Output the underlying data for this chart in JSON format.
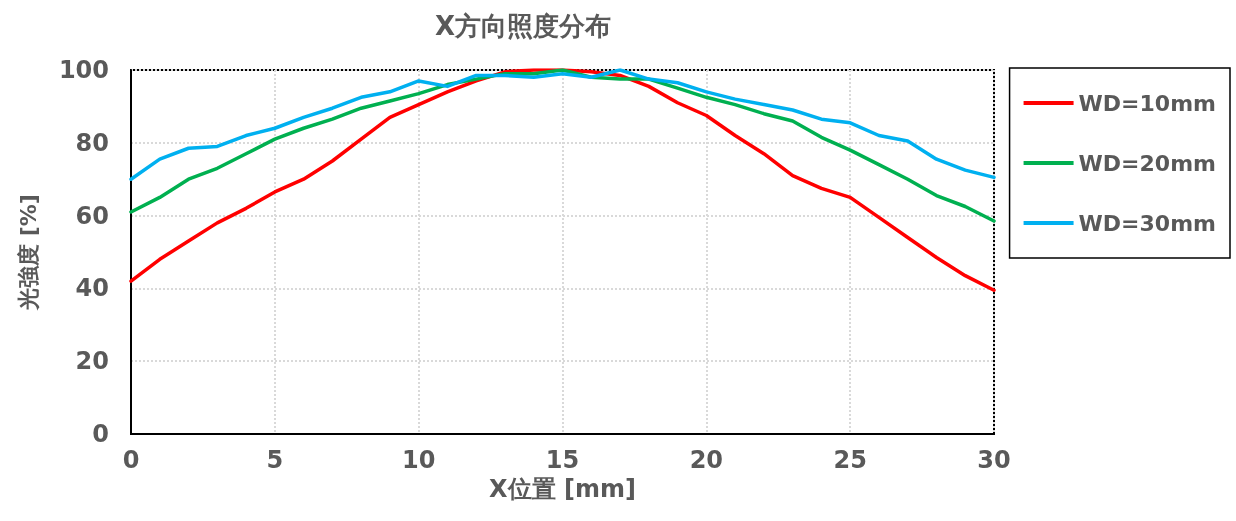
{
  "chart_data": {
    "type": "line",
    "title": "X方向照度分布",
    "xlabel": "X位置 [mm]",
    "ylabel": "光強度 [%]",
    "x": [
      0,
      1,
      2,
      3,
      4,
      5,
      6,
      7,
      8,
      9,
      10,
      11,
      12,
      13,
      14,
      15,
      16,
      17,
      18,
      19,
      20,
      21,
      22,
      23,
      24,
      25,
      26,
      27,
      28,
      29,
      30
    ],
    "series": [
      {
        "name": "WD=10mm",
        "color": "#ff0000",
        "values": [
          42,
          48,
          53,
          58,
          62,
          66.5,
          70,
          75,
          81,
          87,
          90.5,
          94,
          97,
          99.5,
          100,
          100,
          99.5,
          98.5,
          95.5,
          91,
          87.5,
          82,
          77,
          71,
          67.5,
          65,
          59.5,
          54,
          48.5,
          43.5,
          39.5
        ]
      },
      {
        "name": "WD=20mm",
        "color": "#00b050",
        "values": [
          61,
          65,
          70,
          73,
          77,
          81,
          84,
          86.5,
          89.5,
          91.5,
          93.5,
          96,
          97.5,
          99,
          99,
          100,
          98,
          97.5,
          97.5,
          95,
          92.5,
          90.5,
          88,
          86,
          81.5,
          78,
          74,
          70,
          65.5,
          62.5,
          58.5
        ]
      },
      {
        "name": "WD=30mm",
        "color": "#00b0f0",
        "values": [
          70,
          75.5,
          78.5,
          79,
          82,
          84,
          87,
          89.5,
          92.5,
          94,
          97,
          95.5,
          98.5,
          98.5,
          98,
          99,
          98,
          100,
          97.5,
          96.5,
          94,
          92,
          90.5,
          89,
          86.5,
          85.5,
          82,
          80.5,
          75.5,
          72.5,
          70.5
        ]
      }
    ],
    "xlim": [
      0,
      30
    ],
    "xticks": [
      0,
      5,
      10,
      15,
      20,
      25,
      30
    ],
    "ylim": [
      0,
      100
    ],
    "yticks": [
      0,
      20,
      40,
      60,
      80,
      100
    ],
    "grid": true,
    "legend": "right",
    "marker": "none",
    "line_style": "solid"
  }
}
